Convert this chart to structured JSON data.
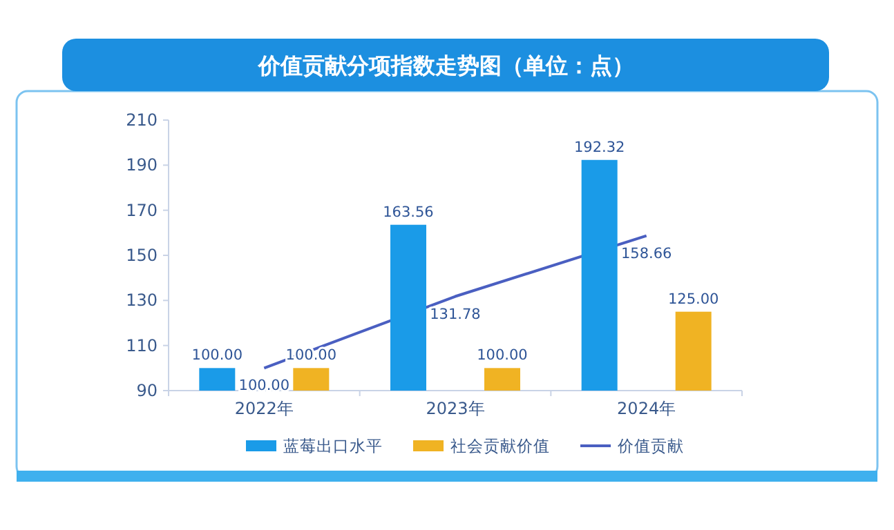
{
  "chart_data": {
    "type": "bar",
    "title": "价值贡献分项指数走势图（单位：点）",
    "categories": [
      "2022年",
      "2023年",
      "2024年"
    ],
    "series": [
      {
        "name": "蓝莓出口水平",
        "color": "#1a9be8",
        "values": [
          100.0,
          163.56,
          192.32
        ],
        "value_labels": [
          "100.00",
          "163.56",
          "192.32"
        ]
      },
      {
        "name": "社会贡献价值",
        "color": "#f0b323",
        "values": [
          100.0,
          100.0,
          125.0
        ],
        "value_labels": [
          "100.00",
          "100.00",
          "125.00"
        ]
      },
      {
        "name": "价值贡献",
        "type": "line",
        "color": "#4a5fc1",
        "values": [
          100.0,
          131.78,
          158.66
        ],
        "value_labels": [
          "100.00",
          "131.78",
          "158.66"
        ]
      }
    ],
    "ylim": [
      90,
      210
    ],
    "yticks": [
      90,
      110,
      130,
      150,
      170,
      190,
      210
    ],
    "legend": "bottom"
  }
}
